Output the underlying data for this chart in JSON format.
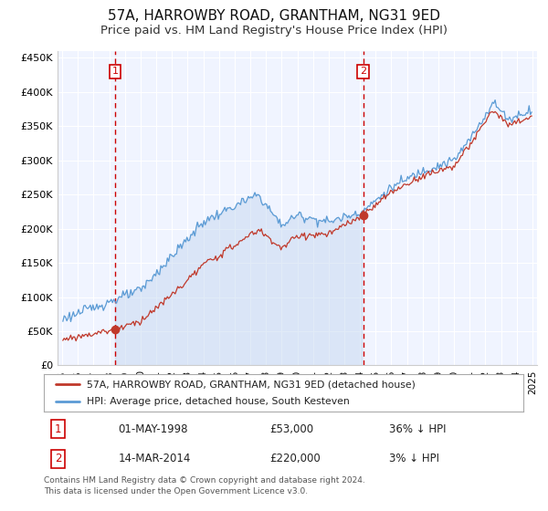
{
  "title": "57A, HARROWBY ROAD, GRANTHAM, NG31 9ED",
  "subtitle": "Price paid vs. HM Land Registry's House Price Index (HPI)",
  "ylim": [
    0,
    460000
  ],
  "yticks": [
    0,
    50000,
    100000,
    150000,
    200000,
    250000,
    300000,
    350000,
    400000,
    450000
  ],
  "ytick_labels": [
    "£0",
    "£50K",
    "£100K",
    "£150K",
    "£200K",
    "£250K",
    "£300K",
    "£350K",
    "£400K",
    "£450K"
  ],
  "background_color": "#ffffff",
  "plot_bg_color": "#f0f4ff",
  "grid_color": "#ffffff",
  "sale1_date": 1998.37,
  "sale1_price": 53000,
  "sale2_date": 2014.2,
  "sale2_price": 220000,
  "legend_line1": "57A, HARROWBY ROAD, GRANTHAM, NG31 9ED (detached house)",
  "legend_line2": "HPI: Average price, detached house, South Kesteven",
  "table_row1": [
    "1",
    "01-MAY-1998",
    "£53,000",
    "36% ↓ HPI"
  ],
  "table_row2": [
    "2",
    "14-MAR-2014",
    "£220,000",
    "3% ↓ HPI"
  ],
  "footer": "Contains HM Land Registry data © Crown copyright and database right 2024.\nThis data is licensed under the Open Government Licence v3.0.",
  "hpi_color": "#5b9bd5",
  "hpi_fill_color": "#c5d8f0",
  "price_color": "#c0392b",
  "vline_color": "#cc0000",
  "title_fontsize": 11,
  "subtitle_fontsize": 9.5,
  "tick_fontsize": 8
}
